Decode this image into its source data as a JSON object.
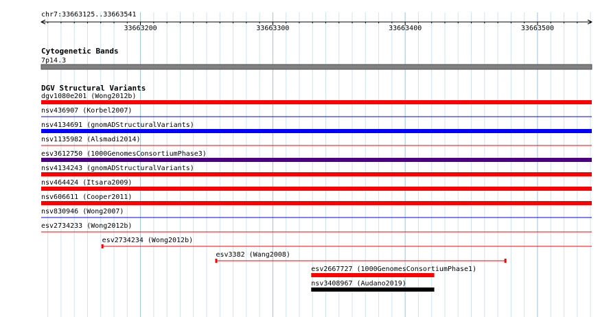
{
  "ruler": {
    "location": "chr7:33663125..33663541",
    "ticks": [
      {
        "label": "33663200",
        "pos": 33663200
      },
      {
        "label": "33663300",
        "pos": 33663300
      },
      {
        "label": "33663400",
        "pos": 33663400
      },
      {
        "label": "33663500",
        "pos": 33663500
      }
    ]
  },
  "view": {
    "start": 33663125,
    "end": 33663541
  },
  "tracks": {
    "cytobands": {
      "title": "Cytogenetic Bands",
      "band_label": "7p14.3",
      "band_color": "#808080"
    },
    "dgv": {
      "title": "DGV Structural Variants",
      "features": [
        {
          "label": "dgv1080e201 (Wong2012b)",
          "start": 33663125,
          "end": 33663541,
          "style": "thick",
          "color": "#ff0000"
        },
        {
          "label": "nsv436907 (Korbel2007)",
          "start": 33663125,
          "end": 33663541,
          "style": "thin",
          "color": "#0000ff"
        },
        {
          "label": "nsv4134691 (gnomADStructuralVariants)",
          "start": 33663125,
          "end": 33663541,
          "style": "thick",
          "color": "#0000ff"
        },
        {
          "label": "nsv1135982 (Alsmadi2014)",
          "start": 33663125,
          "end": 33663541,
          "style": "thin",
          "color": "#ff0000"
        },
        {
          "label": "esv3612750 (1000GenomesConsortiumPhase3)",
          "start": 33663125,
          "end": 33663541,
          "style": "thick",
          "color": "#4b0082"
        },
        {
          "label": "nsv4134243 (gnomADStructuralVariants)",
          "start": 33663125,
          "end": 33663541,
          "style": "thick",
          "color": "#ff0000"
        },
        {
          "label": "nsv464424 (Itsara2009)",
          "start": 33663125,
          "end": 33663541,
          "style": "thick",
          "color": "#ff0000"
        },
        {
          "label": "nsv606611 (Cooper2011)",
          "start": 33663125,
          "end": 33663541,
          "style": "thick",
          "color": "#ff0000"
        },
        {
          "label": "nsv830946 (Wong2007)",
          "start": 33663125,
          "end": 33663541,
          "style": "thin",
          "color": "#0000ff"
        },
        {
          "label": "esv2734233 (Wong2012b)",
          "start": 33663125,
          "end": 33663541,
          "style": "thin",
          "color": "#ff0000"
        },
        {
          "label": "esv2734234 (Wong2012b)",
          "start": 33663171,
          "end": 33663541,
          "style": "thin-capped",
          "color": "#ff0000"
        },
        {
          "label": "esv3382 (Wang2008)",
          "start": 33663257,
          "end": 33663476,
          "style": "thin-capped",
          "color": "#ff0000"
        },
        {
          "label": "esv2667727 (1000GenomesConsortiumPhase1)",
          "start": 33663329,
          "end": 33663422,
          "style": "thick",
          "color": "#ff0000"
        },
        {
          "label": "nsv3408967 (Audano2019)",
          "start": 33663329,
          "end": 33663422,
          "style": "thick",
          "color": "#000000"
        }
      ]
    }
  }
}
